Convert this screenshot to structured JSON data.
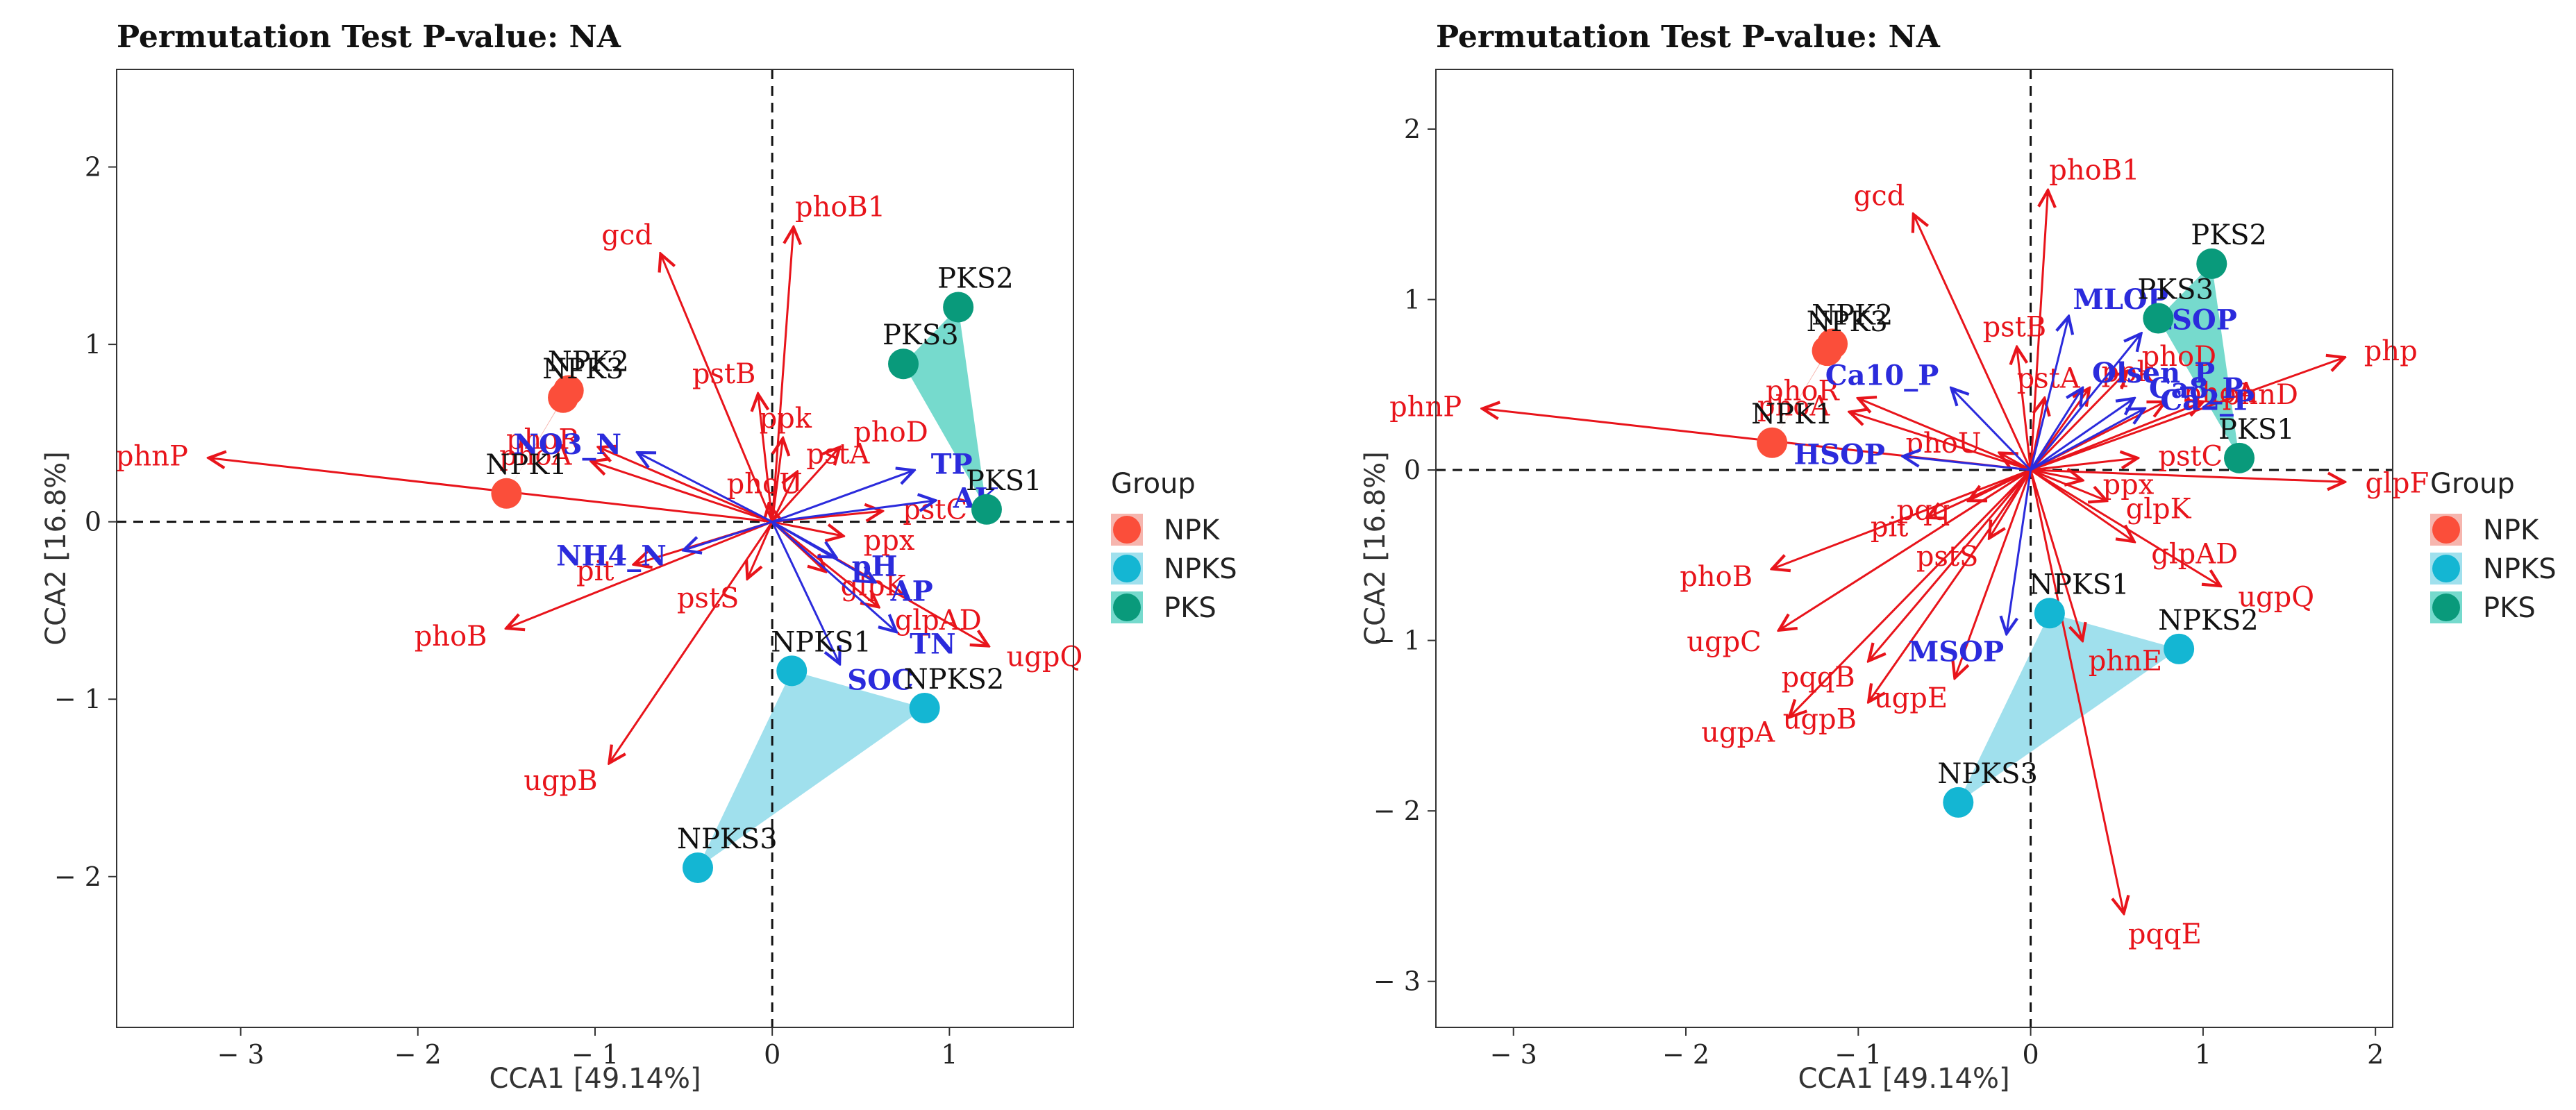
{
  "chart_data": [
    {
      "type": "scatter",
      "title": "Permutation Test P-value: NA",
      "xlabel": "CCA1 [49.14%]",
      "ylabel": "CCA2 [16.8%]",
      "xlim": [
        -3.7,
        1.7
      ],
      "ylim": [
        -2.85,
        2.55
      ],
      "xticks": [
        -3,
        -2,
        -1,
        0,
        1
      ],
      "yticks": [
        -2,
        -1,
        0,
        1,
        2
      ],
      "legend_title": "Group",
      "groups": [
        {
          "name": "NPK",
          "color": "#fb4e3a",
          "hull": "#f5a8a0"
        },
        {
          "name": "NPKS",
          "color": "#14b6d3",
          "hull": "#8fdaea"
        },
        {
          "name": "PKS",
          "color": "#099a7b",
          "hull": "#5ed3c4"
        }
      ],
      "samples": [
        {
          "name": "NPK1",
          "group": "NPK",
          "x": -1.5,
          "y": 0.16
        },
        {
          "name": "NPK2",
          "group": "NPK",
          "x": -1.15,
          "y": 0.74
        },
        {
          "name": "NPK3",
          "group": "NPK",
          "x": -1.18,
          "y": 0.7
        },
        {
          "name": "NPKS1",
          "group": "NPKS",
          "x": 0.11,
          "y": -0.84
        },
        {
          "name": "NPKS2",
          "group": "NPKS",
          "x": 0.86,
          "y": -1.05
        },
        {
          "name": "NPKS3",
          "group": "NPKS",
          "x": -0.42,
          "y": -1.95
        },
        {
          "name": "PKS1",
          "group": "PKS",
          "x": 1.21,
          "y": 0.07
        },
        {
          "name": "PKS2",
          "group": "PKS",
          "x": 1.05,
          "y": 1.21
        },
        {
          "name": "PKS3",
          "group": "PKS",
          "x": 0.74,
          "y": 0.89
        }
      ],
      "genes": [
        {
          "name": "phnP",
          "x": -3.18,
          "y": 0.36
        },
        {
          "name": "gcd",
          "x": -0.63,
          "y": 1.51
        },
        {
          "name": "phoB1",
          "x": 0.12,
          "y": 1.66
        },
        {
          "name": "pstB",
          "x": -0.08,
          "y": 0.72
        },
        {
          "name": "ppk",
          "x": 0.06,
          "y": 0.47
        },
        {
          "name": "phoD",
          "x": 0.38,
          "y": 0.42
        },
        {
          "name": "pstA",
          "x": 0.14,
          "y": 0.28
        },
        {
          "name": "phoR",
          "x": -0.98,
          "y": 0.42
        },
        {
          "name": "phoA",
          "x": -1.02,
          "y": 0.34
        },
        {
          "name": "phoU",
          "x": -0.02,
          "y": 0.1
        },
        {
          "name": "pstC",
          "x": 0.62,
          "y": 0.06
        },
        {
          "name": "ppx",
          "x": 0.4,
          "y": -0.08
        },
        {
          "name": "glpK",
          "x": 0.3,
          "y": -0.28
        },
        {
          "name": "glpAD",
          "x": 0.6,
          "y": -0.48
        },
        {
          "name": "ugpQ",
          "x": 1.22,
          "y": -0.7
        },
        {
          "name": "pit",
          "x": -0.78,
          "y": -0.24
        },
        {
          "name": "pstS",
          "x": -0.14,
          "y": -0.32
        },
        {
          "name": "phoB",
          "x": -1.5,
          "y": -0.6
        },
        {
          "name": "ugpB",
          "x": -0.92,
          "y": -1.36
        }
      ],
      "variables": [
        {
          "name": "NO3_N",
          "x": -0.76,
          "y": 0.39
        },
        {
          "name": "TP",
          "x": 0.8,
          "y": 0.29
        },
        {
          "name": "AK",
          "x": 0.92,
          "y": 0.12
        },
        {
          "name": "NH4_N",
          "x": -0.5,
          "y": -0.16
        },
        {
          "name": "pH",
          "x": 0.36,
          "y": -0.2
        },
        {
          "name": "AP",
          "x": 0.58,
          "y": -0.34
        },
        {
          "name": "TN",
          "x": 0.7,
          "y": -0.62
        },
        {
          "name": "SOC",
          "x": 0.38,
          "y": -0.8
        }
      ]
    },
    {
      "type": "scatter",
      "title": "Permutation Test P-value: NA",
      "xlabel": "CCA1 [49.14%]",
      "ylabel": "CCA2 [16.8%]",
      "xlim": [
        -3.45,
        2.1
      ],
      "ylim": [
        -3.27,
        2.35
      ],
      "xticks": [
        -3,
        -2,
        -1,
        0,
        1,
        2
      ],
      "yticks": [
        -3,
        -2,
        -1,
        0,
        1,
        2
      ],
      "legend_title": "Group",
      "groups": [
        {
          "name": "NPK",
          "color": "#fb4e3a",
          "hull": "#f5a8a0"
        },
        {
          "name": "NPKS",
          "color": "#14b6d3",
          "hull": "#8fdaea"
        },
        {
          "name": "PKS",
          "color": "#099a7b",
          "hull": "#5ed3c4"
        }
      ],
      "samples": [
        {
          "name": "NPK1",
          "group": "NPK",
          "x": -1.5,
          "y": 0.16
        },
        {
          "name": "NPK2",
          "group": "NPK",
          "x": -1.15,
          "y": 0.74
        },
        {
          "name": "NPK3",
          "group": "NPK",
          "x": -1.18,
          "y": 0.7
        },
        {
          "name": "NPKS1",
          "group": "NPKS",
          "x": 0.11,
          "y": -0.84
        },
        {
          "name": "NPKS2",
          "group": "NPKS",
          "x": 0.86,
          "y": -1.05
        },
        {
          "name": "NPKS3",
          "group": "NPKS",
          "x": -0.42,
          "y": -1.95
        },
        {
          "name": "PKS1",
          "group": "PKS",
          "x": 1.21,
          "y": 0.07
        },
        {
          "name": "PKS2",
          "group": "PKS",
          "x": 1.05,
          "y": 1.21
        },
        {
          "name": "PKS3",
          "group": "PKS",
          "x": 0.74,
          "y": 0.89
        }
      ],
      "genes": [
        {
          "name": "phnP",
          "x": -3.18,
          "y": 0.36
        },
        {
          "name": "gcd",
          "x": -0.68,
          "y": 1.5
        },
        {
          "name": "phoB1",
          "x": 0.1,
          "y": 1.64
        },
        {
          "name": "pstB",
          "x": -0.08,
          "y": 0.72
        },
        {
          "name": "php",
          "x": 1.82,
          "y": 0.66
        },
        {
          "name": "phnD",
          "x": 1.0,
          "y": 0.4
        },
        {
          "name": "pstC",
          "x": 0.62,
          "y": 0.07
        },
        {
          "name": "ppx",
          "x": 0.3,
          "y": -0.06
        },
        {
          "name": "glpF",
          "x": 1.82,
          "y": -0.07
        },
        {
          "name": "glpK",
          "x": 0.44,
          "y": -0.18
        },
        {
          "name": "glpAD",
          "x": 0.6,
          "y": -0.42
        },
        {
          "name": "ugpQ",
          "x": 1.1,
          "y": -0.68
        },
        {
          "name": "phoD",
          "x": 0.56,
          "y": 0.58
        },
        {
          "name": "phoA",
          "x": 0.78,
          "y": 0.4
        },
        {
          "name": "ppk",
          "x": 0.34,
          "y": 0.48
        },
        {
          "name": "pstA",
          "x": 0.08,
          "y": 0.42
        },
        {
          "name": "phoU",
          "x": -0.18,
          "y": 0.1
        },
        {
          "name": "phoR",
          "x": -1.0,
          "y": 0.42
        },
        {
          "name": "phoA2",
          "x": -1.05,
          "y": 0.34
        },
        {
          "name": "pqq",
          "x": -0.36,
          "y": -0.18
        },
        {
          "name": "pit",
          "x": -0.6,
          "y": -0.28
        },
        {
          "name": "pstS",
          "x": -0.24,
          "y": -0.4
        },
        {
          "name": "phoB",
          "x": -1.5,
          "y": -0.58
        },
        {
          "name": "ugpC",
          "x": -1.46,
          "y": -0.94
        },
        {
          "name": "pqqB",
          "x": -0.94,
          "y": -1.12
        },
        {
          "name": "ugpE",
          "x": -0.44,
          "y": -1.22
        },
        {
          "name": "ugpB",
          "x": -0.94,
          "y": -1.36
        },
        {
          "name": "ugpA",
          "x": -1.4,
          "y": -1.45
        },
        {
          "name": "phnE",
          "x": 0.3,
          "y": -1.0
        },
        {
          "name": "pqqE",
          "x": 0.54,
          "y": -2.6
        }
      ],
      "variables": [
        {
          "name": "MLOP",
          "x": 0.22,
          "y": 0.9
        },
        {
          "name": "HSOP",
          "x": -0.74,
          "y": 0.08
        },
        {
          "name": "Ca10_P",
          "x": -0.46,
          "y": 0.48
        },
        {
          "name": "Olsen_P",
          "x": 0.3,
          "y": 0.48
        },
        {
          "name": "Ca8_P",
          "x": 0.6,
          "y": 0.42
        },
        {
          "name": "Ca2_P",
          "x": 0.66,
          "y": 0.36
        },
        {
          "name": "LSOP",
          "x": 0.64,
          "y": 0.8
        },
        {
          "name": "MSOP",
          "x": -0.14,
          "y": -0.96
        }
      ]
    }
  ],
  "gene_label_text": {
    "phoA2": "phoA"
  },
  "gene_color": "#e8141b",
  "variable_color": "#2b2bdc"
}
